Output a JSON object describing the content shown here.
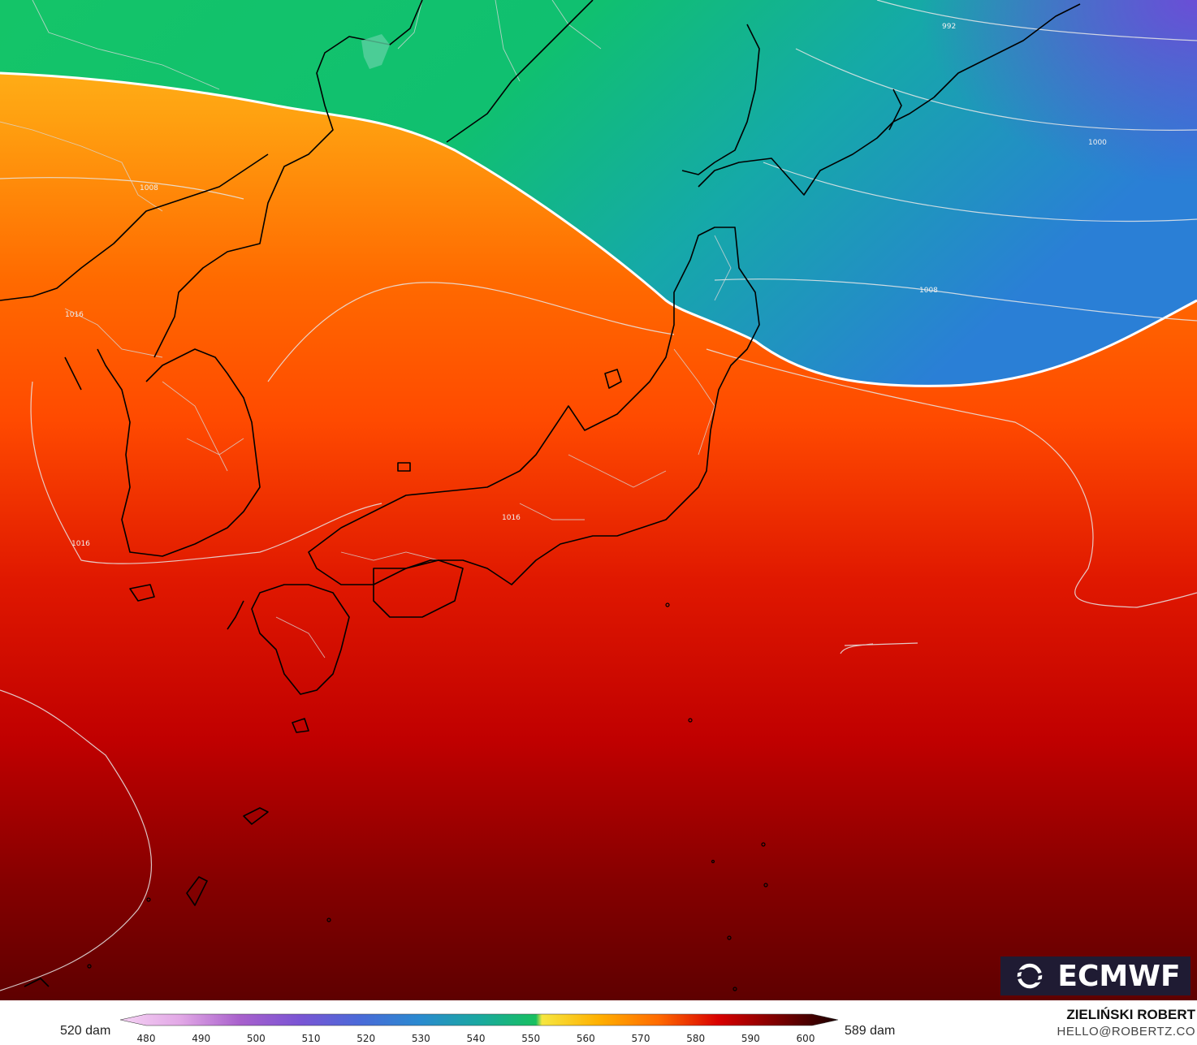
{
  "map": {
    "contour_labels": [
      "992",
      "1000",
      "1008",
      "1008",
      "1016",
      "1016",
      "1016"
    ]
  },
  "logo": {
    "text": "ECMWF"
  },
  "colorbar": {
    "min_label": "520 dam",
    "max_label": "589 dam",
    "ticks": [
      "480",
      "490",
      "500",
      "510",
      "520",
      "530",
      "540",
      "550",
      "560",
      "570",
      "580",
      "590",
      "600"
    ],
    "colors": {
      "c480": "#f5d2f4",
      "c490": "#e2a8e6",
      "c500": "#a860cc",
      "c510": "#7a55d4",
      "c520": "#4a6ad8",
      "c530": "#2a8ad0",
      "c540": "#1aa8a0",
      "c550": "#18c060",
      "c555": "#f6e640",
      "c560": "#ffb000",
      "c570": "#ff6a00",
      "c580": "#d80000",
      "c590": "#7a0000",
      "c600": "#1a0000"
    }
  },
  "credit": {
    "author": "ZIELIŃSKI ROBERT",
    "email": "HELLO@ROBERTZ.CO"
  }
}
